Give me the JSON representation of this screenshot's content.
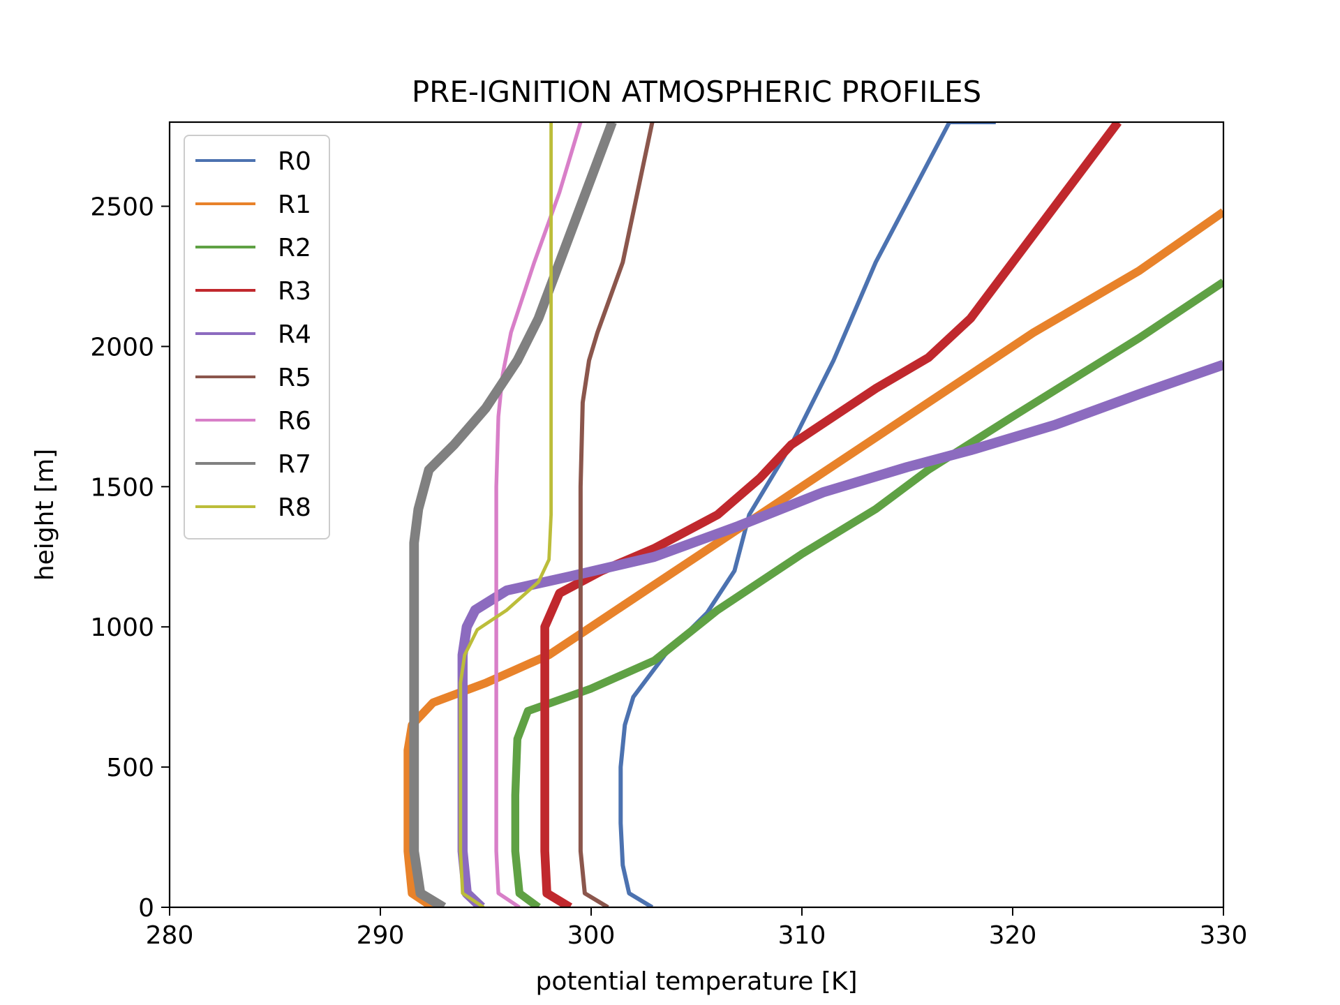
{
  "chart_data": {
    "type": "line",
    "title": "PRE-IGNITION ATMOSPHERIC PROFILES",
    "xlabel": "potential temperature [K]",
    "ylabel": "height [m]",
    "xlim": [
      280,
      330
    ],
    "ylim": [
      0,
      2800
    ],
    "xticks": [
      280,
      290,
      300,
      310,
      320,
      330
    ],
    "yticks": [
      0,
      500,
      1000,
      1500,
      2000,
      2500
    ],
    "grid": false,
    "legend_position": "upper-left",
    "series": [
      {
        "name": "R0",
        "color": "#4c72b0",
        "band_width": 1.0,
        "points": [
          [
            302.9,
            0
          ],
          [
            301.8,
            50
          ],
          [
            301.5,
            150
          ],
          [
            301.4,
            300
          ],
          [
            301.4,
            500
          ],
          [
            301.6,
            650
          ],
          [
            302.0,
            750
          ],
          [
            303.5,
            900
          ],
          [
            305.5,
            1050
          ],
          [
            306.8,
            1200
          ],
          [
            307.5,
            1400
          ],
          [
            309.5,
            1650
          ],
          [
            311.5,
            1950
          ],
          [
            313.5,
            2300
          ],
          [
            317.0,
            2800
          ],
          [
            319.2,
            2800
          ]
        ]
      },
      {
        "name": "R1",
        "color": "#e8822a",
        "band_width": 3.0,
        "points": [
          [
            292.5,
            0
          ],
          [
            291.5,
            50
          ],
          [
            291.3,
            200
          ],
          [
            291.3,
            400
          ],
          [
            291.3,
            560
          ],
          [
            291.5,
            650
          ],
          [
            292.5,
            730
          ],
          [
            295.0,
            800
          ],
          [
            298.0,
            900
          ],
          [
            300.0,
            1000
          ],
          [
            303.0,
            1150
          ],
          [
            306.0,
            1300
          ],
          [
            310.0,
            1500
          ],
          [
            316.0,
            1800
          ],
          [
            321.0,
            2050
          ],
          [
            326.0,
            2270
          ],
          [
            330.0,
            2480
          ]
        ]
      },
      {
        "name": "R2",
        "color": "#5fa144",
        "band_width": 2.8,
        "points": [
          [
            297.5,
            0
          ],
          [
            296.6,
            50
          ],
          [
            296.4,
            200
          ],
          [
            296.4,
            400
          ],
          [
            296.5,
            600
          ],
          [
            297.0,
            700
          ],
          [
            300.0,
            780
          ],
          [
            303.0,
            880
          ],
          [
            306.0,
            1060
          ],
          [
            310.0,
            1260
          ],
          [
            313.5,
            1420
          ],
          [
            316.0,
            1560
          ],
          [
            320.0,
            1750
          ],
          [
            326.0,
            2030
          ],
          [
            330.0,
            2230
          ]
        ]
      },
      {
        "name": "R3",
        "color": "#c0282d",
        "band_width": 3.2,
        "points": [
          [
            299.0,
            0
          ],
          [
            297.9,
            50
          ],
          [
            297.8,
            200
          ],
          [
            297.8,
            400
          ],
          [
            297.8,
            700
          ],
          [
            297.8,
            1000
          ],
          [
            298.5,
            1120
          ],
          [
            300.5,
            1200
          ],
          [
            303.0,
            1280
          ],
          [
            306.0,
            1400
          ],
          [
            308.0,
            1530
          ],
          [
            309.5,
            1650
          ],
          [
            313.5,
            1850
          ],
          [
            316.0,
            1960
          ],
          [
            318.0,
            2100
          ],
          [
            320.0,
            2300
          ],
          [
            322.0,
            2500
          ],
          [
            325.0,
            2800
          ]
        ]
      },
      {
        "name": "R4",
        "color": "#8c6bbf",
        "band_width": 3.8,
        "points": [
          [
            294.8,
            0
          ],
          [
            294.1,
            50
          ],
          [
            293.9,
            200
          ],
          [
            293.9,
            500
          ],
          [
            293.9,
            900
          ],
          [
            294.1,
            1000
          ],
          [
            294.5,
            1060
          ],
          [
            296.0,
            1130
          ],
          [
            299.0,
            1180
          ],
          [
            303.0,
            1250
          ],
          [
            307.0,
            1360
          ],
          [
            311.0,
            1480
          ],
          [
            315.0,
            1570
          ],
          [
            318.0,
            1630
          ],
          [
            322.0,
            1720
          ],
          [
            326.0,
            1830
          ],
          [
            330.0,
            1935
          ]
        ]
      },
      {
        "name": "R5",
        "color": "#8b564c",
        "band_width": 1.0,
        "points": [
          [
            300.8,
            0
          ],
          [
            299.7,
            50
          ],
          [
            299.5,
            200
          ],
          [
            299.5,
            500
          ],
          [
            299.5,
            1000
          ],
          [
            299.5,
            1500
          ],
          [
            299.6,
            1800
          ],
          [
            299.9,
            1950
          ],
          [
            300.3,
            2050
          ],
          [
            301.5,
            2300
          ],
          [
            302.9,
            2800
          ]
        ]
      },
      {
        "name": "R6",
        "color": "#d87fc8",
        "band_width": 0.8,
        "points": [
          [
            296.6,
            0
          ],
          [
            295.6,
            50
          ],
          [
            295.5,
            200
          ],
          [
            295.5,
            500
          ],
          [
            295.5,
            1000
          ],
          [
            295.5,
            1500
          ],
          [
            295.6,
            1750
          ],
          [
            295.8,
            1900
          ],
          [
            296.2,
            2050
          ],
          [
            297.3,
            2300
          ],
          [
            298.5,
            2550
          ],
          [
            299.5,
            2800
          ]
        ]
      },
      {
        "name": "R7",
        "color": "#808080",
        "band_width": 3.6,
        "points": [
          [
            293.0,
            0
          ],
          [
            291.9,
            50
          ],
          [
            291.6,
            200
          ],
          [
            291.6,
            500
          ],
          [
            291.6,
            1000
          ],
          [
            291.6,
            1300
          ],
          [
            291.8,
            1420
          ],
          [
            292.3,
            1560
          ],
          [
            293.5,
            1650
          ],
          [
            295.0,
            1780
          ],
          [
            296.5,
            1950
          ],
          [
            297.5,
            2100
          ],
          [
            298.5,
            2300
          ],
          [
            299.5,
            2500
          ],
          [
            301.0,
            2800
          ]
        ]
      },
      {
        "name": "R8",
        "color": "#bcbd3a",
        "band_width": 0.6,
        "points": [
          [
            294.9,
            0
          ],
          [
            293.9,
            50
          ],
          [
            293.8,
            200
          ],
          [
            293.8,
            500
          ],
          [
            293.8,
            800
          ],
          [
            294.0,
            900
          ],
          [
            294.6,
            990
          ],
          [
            296.0,
            1060
          ],
          [
            297.5,
            1160
          ],
          [
            298.0,
            1240
          ],
          [
            298.1,
            1400
          ],
          [
            298.1,
            2000
          ],
          [
            298.1,
            2800
          ]
        ]
      }
    ]
  }
}
